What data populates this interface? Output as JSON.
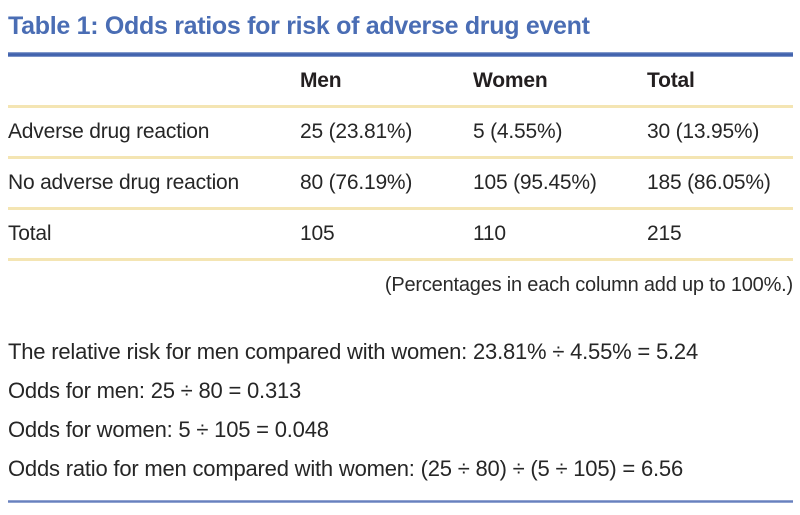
{
  "title": "Table 1: Odds ratios for risk of adverse drug event",
  "colors": {
    "title_blue": "#4a6db4",
    "rule_blue_top": "#4162ad",
    "rule_blue_bottom": "#5b76b8",
    "rule_cream": "#f4e5b3",
    "body_text": "#262626"
  },
  "table": {
    "headers": [
      "",
      "Men",
      "Women",
      "Total"
    ],
    "rows": [
      {
        "cells": [
          "Adverse drug reaction",
          "25 (23.81%)",
          "5 (4.55%)",
          "30 (13.95%)"
        ]
      },
      {
        "cells": [
          "No adverse drug reaction",
          "80 (76.19%)",
          "105 (95.45%)",
          "185 (86.05%)"
        ]
      },
      {
        "cells": [
          "Total",
          "105",
          "110",
          "215"
        ]
      }
    ],
    "note": "(Percentages in each column add up to 100%.)"
  },
  "calculations": {
    "lines": [
      "The relative risk for men compared with women: 23.81% ÷ 4.55% = 5.24",
      "Odds for men: 25 ÷ 80 = 0.313",
      "Odds for women: 5 ÷ 105 = 0.048",
      "Odds ratio for men compared with women: (25 ÷ 80) ÷ (5 ÷ 105) = 6.56"
    ]
  }
}
